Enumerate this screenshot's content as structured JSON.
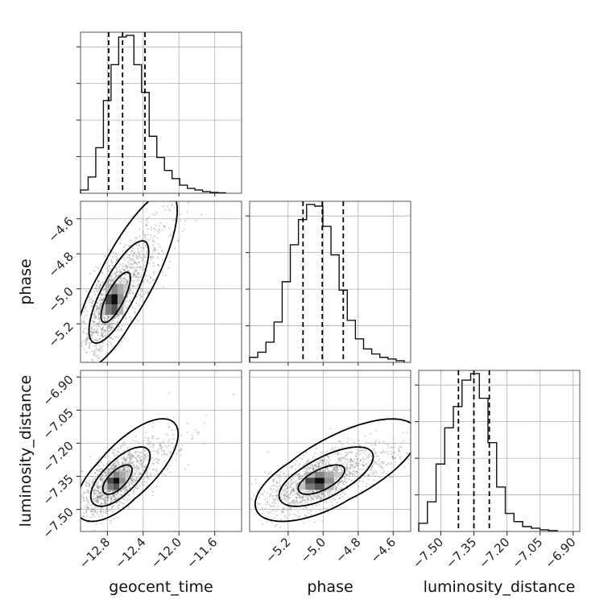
{
  "chart_data": {
    "type": "corner",
    "parameters": [
      {
        "key": "geocent_time",
        "label": "geocent_time",
        "range": [
          -13.1,
          -11.3
        ],
        "ticks": [
          -12.8,
          -12.4,
          -12.0,
          -11.6
        ],
        "tick_labels": [
          "−12.8",
          "−12.4",
          "−12.0",
          "−11.6"
        ],
        "quantiles": [
          -12.785,
          -12.63,
          -12.38
        ],
        "histogram": [
          2,
          10,
          28,
          57,
          79,
          96,
          97,
          79,
          62,
          35,
          22,
          14,
          9,
          5,
          3,
          2,
          1,
          0.5,
          0.3
        ]
      },
      {
        "key": "phase",
        "label": "phase",
        "range": [
          -5.42,
          -4.5
        ],
        "ticks": [
          -5.2,
          -5.0,
          -4.8,
          -4.6
        ],
        "tick_labels": [
          "−5.2",
          "−5.0",
          "−4.8",
          "−4.6"
        ],
        "quantiles": [
          -5.115,
          -5.005,
          -4.885
        ],
        "histogram": [
          3,
          6,
          12,
          24,
          48,
          70,
          85,
          94,
          93,
          81,
          64,
          43,
          25,
          14,
          8,
          5,
          3,
          2,
          1
        ]
      },
      {
        "key": "luminosity_distance",
        "label": "luminosity_distance",
        "range": [
          -7.6,
          -6.87
        ],
        "ticks": [
          -7.5,
          -7.35,
          -7.2,
          -7.05,
          -6.9
        ],
        "tick_labels": [
          "−7.50",
          "−7.35",
          "−7.20",
          "−7.05",
          "−6.90"
        ],
        "quantiles": [
          -7.42,
          -7.35,
          -7.28
        ],
        "histogram": [
          5,
          18,
          41,
          63,
          76,
          92,
          96,
          81,
          54,
          27,
          11,
          6,
          3,
          2,
          1,
          0.5
        ]
      }
    ],
    "pairs": [
      {
        "x": "geocent_time",
        "y": "phase",
        "center": [
          -12.72,
          -5.06
        ],
        "spread": [
          0.16,
          0.14
        ],
        "correlation": 0.72,
        "levels": [
          0.9,
          1.7,
          2.7
        ]
      },
      {
        "x": "geocent_time",
        "y": "luminosity_distance",
        "center": [
          -12.7,
          -7.37
        ],
        "spread": [
          0.16,
          0.065
        ],
        "correlation": 0.6,
        "levels": [
          0.9,
          1.7,
          2.7
        ]
      },
      {
        "x": "phase",
        "y": "luminosity_distance",
        "center": [
          -5.02,
          -7.37
        ],
        "spread": [
          0.13,
          0.065
        ],
        "correlation": 0.58,
        "levels": [
          0.9,
          1.7,
          2.7
        ]
      }
    ],
    "grid": true,
    "legend": "none"
  }
}
